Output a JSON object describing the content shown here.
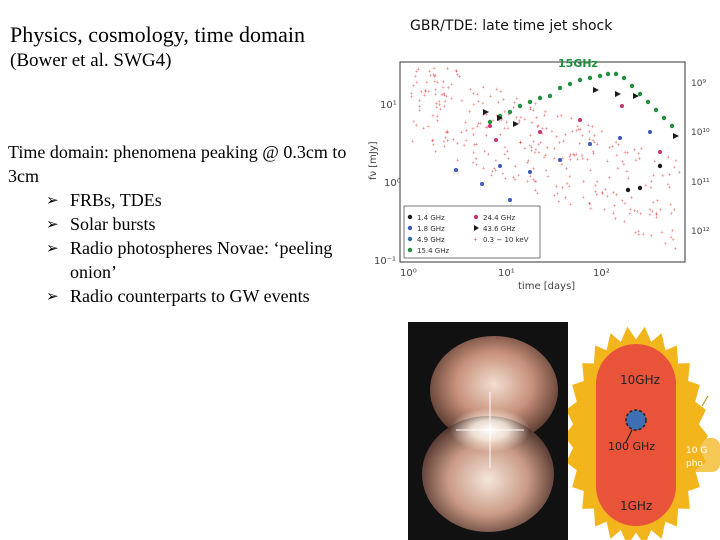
{
  "slide": {
    "title_line1": "Physics, cosmology, time domain",
    "title_line2": "(Bower et al. SWG4)",
    "intro": "Time domain: phenomena peaking @ 0.3cm to 3cm",
    "bullets": [
      "FRBs, TDEs",
      "Solar bursts",
      "Radio photospheres Novae: ‘peeling onion’",
      "Radio counterparts to GW events"
    ]
  },
  "lightcurve": {
    "heading": "GBR/TDE: late time jet shock",
    "annotation": "15GHz",
    "xlabel": "time [days]",
    "ylabel": "fν [mJy]",
    "x_ticks": [
      "10⁰",
      "10¹",
      "10²"
    ],
    "y_ticks": [
      "10¹",
      "10⁰",
      "10⁻¹"
    ],
    "right_ticks": [
      "10⁹",
      "10¹⁰",
      "10¹¹",
      "10¹²"
    ],
    "legend": [
      {
        "label": "1.4 GHz",
        "color": "#1a1a1a",
        "marker": "circle"
      },
      {
        "label": "24.4 GHz",
        "color": "#c8326e",
        "marker": "circle"
      },
      {
        "label": "1.8 GHz",
        "color": "#3b57b8",
        "marker": "circle"
      },
      {
        "label": "43.6 GHz",
        "color": "#1a1a1a",
        "marker": "triangle"
      },
      {
        "label": "4.9 GHz",
        "color": "#2f6db3",
        "marker": "circle"
      },
      {
        "label": "0.3 − 10 keV",
        "color": "#e02020",
        "marker": "cross"
      },
      {
        "label": "15.4 GHz",
        "color": "#1f8f3f",
        "marker": "circle"
      }
    ]
  },
  "diagram": {
    "labels": [
      "10GHz",
      "100 GHz",
      "1GHz"
    ],
    "side_label_1": "10 G",
    "side_label_2": "pho",
    "colors": {
      "outer": "#f2b51c",
      "inner": "#e8533a",
      "core": "#3f6fb3",
      "text": "#222222"
    }
  }
}
